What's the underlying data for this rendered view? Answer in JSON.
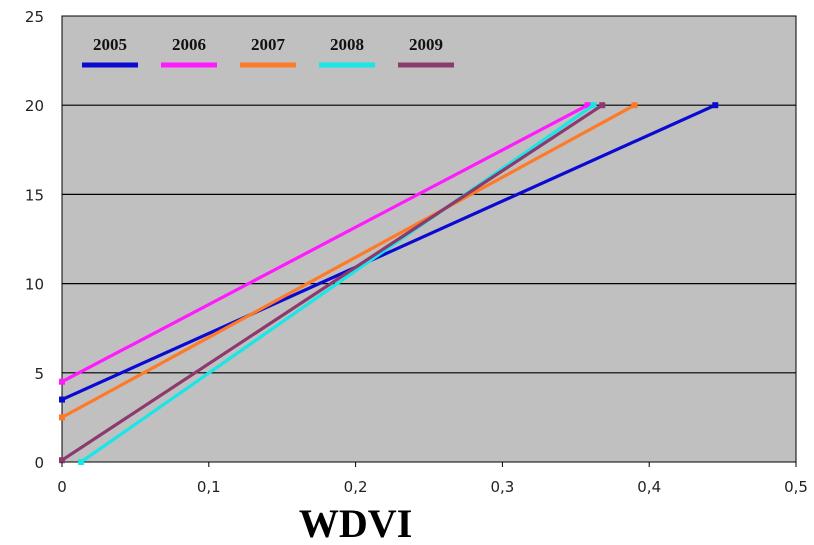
{
  "chart_data": {
    "type": "line",
    "title": "",
    "xlabel": "WDVI",
    "ylabel": "",
    "xlim": [
      0,
      0.5
    ],
    "ylim": [
      0,
      25
    ],
    "x_ticks": [
      "0",
      "0,1",
      "0,2",
      "0,3",
      "0,4",
      "0,5"
    ],
    "y_ticks": [
      "0",
      "5",
      "10",
      "15",
      "20",
      "25"
    ],
    "grid": "horizontal",
    "legend_position": "top-left",
    "plot_background": "#c0c0c0",
    "series": [
      {
        "name": "2005",
        "color": "#0a0ad2",
        "points": [
          [
            0,
            3.5
          ],
          [
            0.445,
            20
          ]
        ]
      },
      {
        "name": "2006",
        "color": "#ff1aff",
        "points": [
          [
            0,
            4.5
          ],
          [
            0.358,
            20
          ]
        ]
      },
      {
        "name": "2007",
        "color": "#ff7a26",
        "points": [
          [
            0,
            2.5
          ],
          [
            0.39,
            20
          ]
        ]
      },
      {
        "name": "2008",
        "color": "#19e6e6",
        "points": [
          [
            0.013,
            0
          ],
          [
            0.362,
            20
          ]
        ]
      },
      {
        "name": "2009",
        "color": "#8c3a6e",
        "points": [
          [
            0,
            0.1
          ],
          [
            0.368,
            20
          ]
        ]
      }
    ]
  }
}
